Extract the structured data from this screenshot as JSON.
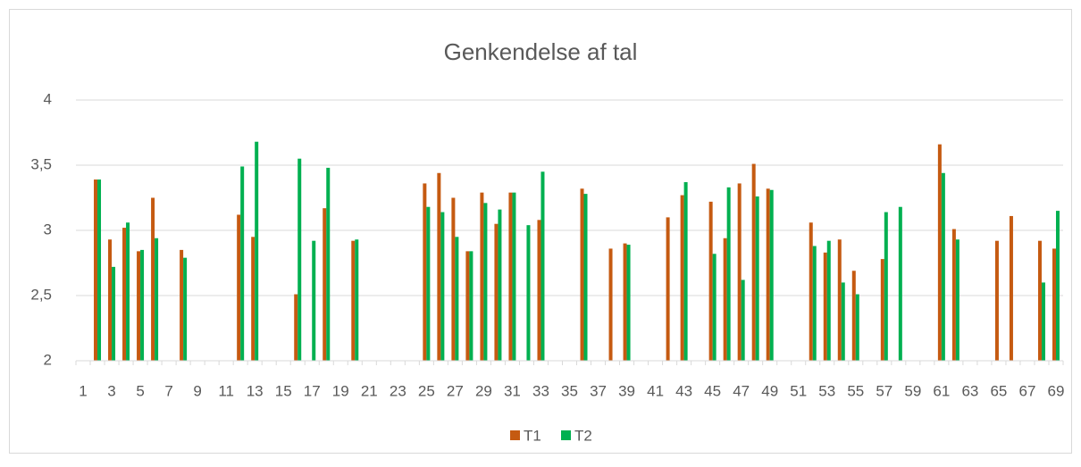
{
  "chart_data": {
    "type": "bar",
    "title": "Genkendelse af tal",
    "categories": [
      "1",
      null,
      "3",
      null,
      "5",
      null,
      "7",
      null,
      "9",
      null,
      "11",
      null,
      "13",
      null,
      "15",
      null,
      "17",
      null,
      "19",
      null,
      "21",
      null,
      "23",
      null,
      "25",
      null,
      "27",
      null,
      "29",
      null,
      "31",
      null,
      "33",
      null,
      "35",
      null,
      "37",
      null,
      "39",
      null,
      "41",
      null,
      "43",
      null,
      "45",
      null,
      "47",
      null,
      "49",
      null,
      "51",
      null,
      "53",
      null,
      "55",
      null,
      "57",
      null,
      "59",
      null,
      "61",
      null,
      "63",
      null,
      "65",
      null,
      "67",
      null,
      "69"
    ],
    "series": [
      {
        "name": "T1",
        "color": "#c55a11",
        "values": [
          null,
          3.39,
          2.93,
          3.02,
          2.84,
          3.25,
          null,
          2.85,
          null,
          null,
          null,
          3.12,
          2.95,
          null,
          null,
          2.51,
          null,
          3.17,
          null,
          2.92,
          null,
          null,
          null,
          null,
          3.36,
          3.44,
          3.25,
          2.84,
          3.29,
          3.05,
          3.29,
          null,
          3.08,
          null,
          null,
          3.32,
          null,
          2.86,
          2.9,
          null,
          null,
          3.1,
          3.27,
          null,
          3.22,
          2.94,
          3.36,
          3.51,
          3.32,
          null,
          null,
          3.06,
          2.83,
          2.93,
          2.69,
          null,
          2.78,
          null,
          null,
          null,
          3.66,
          3.01,
          null,
          null,
          2.92,
          3.11,
          null,
          2.92,
          2.86
        ]
      },
      {
        "name": "T2",
        "color": "#00b050",
        "values": [
          null,
          3.39,
          2.72,
          3.06,
          2.85,
          2.94,
          null,
          2.79,
          null,
          null,
          null,
          3.49,
          3.68,
          null,
          null,
          3.55,
          2.92,
          3.48,
          null,
          2.93,
          null,
          null,
          null,
          null,
          3.18,
          3.14,
          2.95,
          2.84,
          3.21,
          3.16,
          3.29,
          3.04,
          3.45,
          null,
          null,
          3.28,
          null,
          null,
          2.89,
          null,
          null,
          null,
          3.37,
          null,
          2.82,
          3.33,
          2.62,
          3.26,
          3.31,
          null,
          null,
          2.88,
          2.92,
          2.6,
          2.51,
          null,
          3.14,
          3.18,
          null,
          null,
          3.44,
          2.93,
          null,
          null,
          null,
          null,
          null,
          2.6,
          3.15
        ]
      }
    ],
    "ylim": [
      2,
      4
    ],
    "yticks": [
      2,
      {
        "value": 2.5,
        "label": "2,5"
      },
      3,
      {
        "value": 3.5,
        "label": "3,5"
      },
      4
    ],
    "grid": true,
    "legend": "bottom"
  }
}
